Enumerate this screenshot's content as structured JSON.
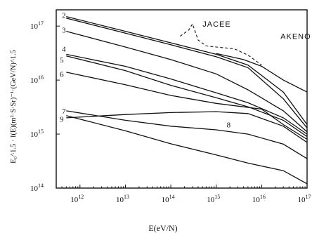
{
  "chart_data": {
    "type": "line",
    "xlabel": "E(eV/N)",
    "ylabel": "E₀^1.5 · I(E)(m²·S·Sr)⁻¹·(GeV/N)^1.5",
    "xscale": "log",
    "yscale": "log",
    "xlim": [
      300000000000.0,
      1e+17
    ],
    "ylim": [
      100000000000000.0,
      2e+17
    ],
    "x_ticks": [
      {
        "value": 1000000000000.0,
        "label": "10",
        "exp": "12"
      },
      {
        "value": 10000000000000.0,
        "label": "10",
        "exp": "13"
      },
      {
        "value": 100000000000000.0,
        "label": "10",
        "exp": "14"
      },
      {
        "value": 1000000000000000.0,
        "label": "10",
        "exp": "15"
      },
      {
        "value": 1e+16,
        "label": "10",
        "exp": "16"
      },
      {
        "value": 1e+17,
        "label": "10",
        "exp": "17"
      }
    ],
    "y_ticks": [
      {
        "value": 100000000000000.0,
        "label": "10",
        "exp": "14"
      },
      {
        "value": 1000000000000000.0,
        "label": "10",
        "exp": "15"
      },
      {
        "value": 1e+16,
        "label": "10",
        "exp": "16"
      },
      {
        "value": 1e+17,
        "label": "10",
        "exp": "17"
      }
    ],
    "series": [
      {
        "name": "2",
        "style": "solid",
        "x": [
          500000000000.0,
          10000000000000.0,
          100000000000000.0,
          1000000000000000.0,
          5000000000000000.0,
          3e+16,
          1e+17
        ],
        "y": [
          1.5e+17,
          8e+16,
          4.9e+16,
          3e+16,
          1.9e+16,
          6000000000000000.0,
          1500000000000000.0
        ]
      },
      {
        "name": "2",
        "style": "solid",
        "x": [
          500000000000.0,
          10000000000000.0,
          100000000000000.0,
          1000000000000000.0,
          5000000000000000.0,
          3e+16,
          1e+17
        ],
        "y": [
          1.4e+17,
          7.4e+16,
          4.5e+16,
          2.7e+16,
          1.7e+16,
          4500000000000000.0,
          1300000000000000.0
        ]
      },
      {
        "name": "3",
        "style": "solid",
        "x": [
          500000000000.0,
          10000000000000.0,
          100000000000000.0,
          1000000000000000.0,
          5000000000000000.0,
          3e+16,
          1e+17
        ],
        "y": [
          8e+16,
          4.1e+16,
          2.4e+16,
          1.3e+16,
          6600000000000000.0,
          2700000000000000.0,
          1100000000000000.0
        ]
      },
      {
        "name": "4",
        "style": "solid",
        "x": [
          500000000000.0,
          10000000000000.0,
          100000000000000.0,
          1000000000000000.0,
          5000000000000000.0,
          3e+16,
          1e+17
        ],
        "y": [
          3e+16,
          1.8e+16,
          1.05e+16,
          5800000000000000.0,
          3800000000000000.0,
          2000000000000000.0,
          1000000000000000.0
        ]
      },
      {
        "name": "5",
        "style": "solid",
        "x": [
          500000000000.0,
          10000000000000.0,
          100000000000000.0,
          1000000000000000.0,
          5000000000000000.0,
          3e+16,
          1e+17
        ],
        "y": [
          2.8e+16,
          1.5e+16,
          8000000000000000.0,
          4700000000000000.0,
          3200000000000000.0,
          1800000000000000.0,
          900000000000000.0
        ]
      },
      {
        "name": "6",
        "style": "solid",
        "x": [
          500000000000.0,
          10000000000000.0,
          100000000000000.0,
          1000000000000000.0,
          1e+16,
          3e+16,
          1e+17
        ],
        "y": [
          1.4e+16,
          8200000000000000.0,
          5200000000000000.0,
          3700000000000000.0,
          2900000000000000.0,
          1500000000000000.0,
          800000000000000.0
        ]
      },
      {
        "name": "7",
        "style": "solid",
        "x": [
          500000000000.0,
          10000000000000.0,
          100000000000000.0,
          1000000000000000.0,
          5000000000000000.0,
          3e+16,
          1e+17
        ],
        "y": [
          2700000000000000.0,
          1800000000000000.0,
          1400000000000000.0,
          1200000000000000.0,
          1000000000000000.0,
          650000000000000.0,
          350000000000000.0
        ]
      },
      {
        "name": "8",
        "style": "solid",
        "x": [
          500000000000.0,
          10000000000000.0,
          100000000000000.0,
          1000000000000000.0,
          5000000000000000.0,
          3e+16,
          1e+17
        ],
        "y": [
          2000000000000000.0,
          2300000000000000.0,
          2500000000000000.0,
          2600000000000000.0,
          2400000000000000.0,
          1400000000000000.0,
          700000000000000.0
        ]
      },
      {
        "name": "9",
        "style": "solid",
        "x": [
          500000000000.0,
          10000000000000.0,
          100000000000000.0,
          1000000000000000.0,
          5000000000000000.0,
          3e+16,
          1e+17
        ],
        "y": [
          2200000000000000.0,
          1150000000000000.0,
          660000000000000.0,
          410000000000000.0,
          290000000000000.0,
          210000000000000.0,
          120000000000000.0
        ]
      },
      {
        "name": "JACEE",
        "style": "dashed",
        "x": [
          160000000000000.0,
          250000000000000.0,
          300000000000000.0,
          400000000000000.0,
          600000000000000.0,
          1000000000000000.0,
          2500000000000000.0,
          5000000000000000.0,
          1e+16
        ],
        "y": [
          6.5e+16,
          8.5e+16,
          1.1e+17,
          5.5e+16,
          4.3e+16,
          4.1e+16,
          3.8e+16,
          2.9e+16,
          1.9e+16
        ]
      },
      {
        "name": "AKENO",
        "style": "solid",
        "x": [
          1000000000000000.0,
          4000000000000000.0,
          1e+16,
          3e+16,
          1e+17
        ],
        "y": [
          3.1e+16,
          2.4e+16,
          1.8e+16,
          1e+16,
          6000000000000000.0
        ]
      }
    ],
    "curve_labels": [
      {
        "text": "2",
        "x": 400000000000.0,
        "y": 1.6e+17
      },
      {
        "text": "3",
        "x": 400000000000.0,
        "y": 8.5e+16
      },
      {
        "text": "4",
        "x": 400000000000.0,
        "y": 3.8e+16
      },
      {
        "text": "5",
        "x": 360000000000.0,
        "y": 2.4e+16
      },
      {
        "text": "6",
        "x": 360000000000.0,
        "y": 1.3e+16
      },
      {
        "text": "7",
        "x": 400000000000.0,
        "y": 2700000000000000.0
      },
      {
        "text": "9",
        "x": 360000000000.0,
        "y": 1900000000000000.0
      },
      {
        "text": "8",
        "x": 1700000000000000.0,
        "y": 1500000000000000.0
      },
      {
        "text": "JACEE",
        "x": 500000000000000.0,
        "y": 1.1e+17
      },
      {
        "text": "AKENO",
        "x": 2.6e+16,
        "y": 6.5e+16
      }
    ],
    "grid": false
  }
}
